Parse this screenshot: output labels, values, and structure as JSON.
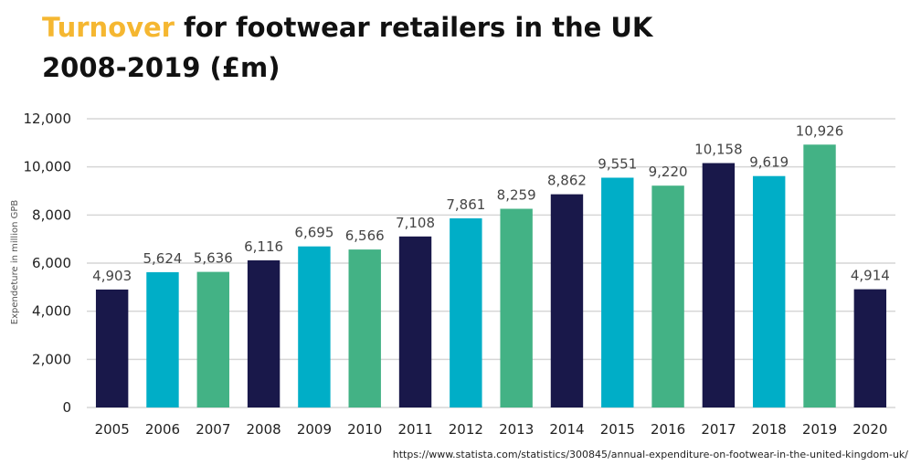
{
  "title": {
    "accent": "Turnover",
    "rest": " for footwear retailers in the UK 2008-2019 (£m)"
  },
  "source": "https://www.statista.com/statistics/300845/annual-expenditure-on-footwear-in-the-united-kingdom-uk/",
  "colors": {
    "title_accent": "#F5B731",
    "palette": [
      "#19184A",
      "#00AEC7",
      "#43B285"
    ],
    "grid": "#D6D6D6"
  },
  "chart_data": {
    "type": "bar",
    "ylabel": "Expendeture in million GPB",
    "xlabel": "",
    "ylim": [
      0,
      12000
    ],
    "yticks": [
      0,
      2000,
      4000,
      6000,
      8000,
      10000,
      12000
    ],
    "ytick_labels": [
      "0",
      "2,000",
      "4,000",
      "6,000",
      "8,000",
      "10,000",
      "12,000"
    ],
    "grid": true,
    "categories": [
      "2005",
      "2006",
      "2007",
      "2008",
      "2009",
      "2010",
      "2011",
      "2012",
      "2013",
      "2014",
      "2015",
      "2016",
      "2017",
      "2018",
      "2019",
      "2020"
    ],
    "values": [
      4903,
      5624,
      5636,
      6116,
      6695,
      6566,
      7108,
      7861,
      8259,
      8862,
      9551,
      9220,
      10158,
      9619,
      10926,
      4914
    ],
    "value_labels": [
      "4,903",
      "5,624",
      "5,636",
      "6,116",
      "6,695",
      "6,566",
      "7,108",
      "7,861",
      "8,259",
      "8,862",
      "9,551",
      "9,220",
      "10,158",
      "9,619",
      "10,926",
      "4,914"
    ],
    "bar_colors": [
      "#19184A",
      "#00AEC7",
      "#43B285",
      "#19184A",
      "#00AEC7",
      "#43B285",
      "#19184A",
      "#00AEC7",
      "#43B285",
      "#19184A",
      "#00AEC7",
      "#43B285",
      "#19184A",
      "#00AEC7",
      "#43B285",
      "#19184A"
    ]
  }
}
